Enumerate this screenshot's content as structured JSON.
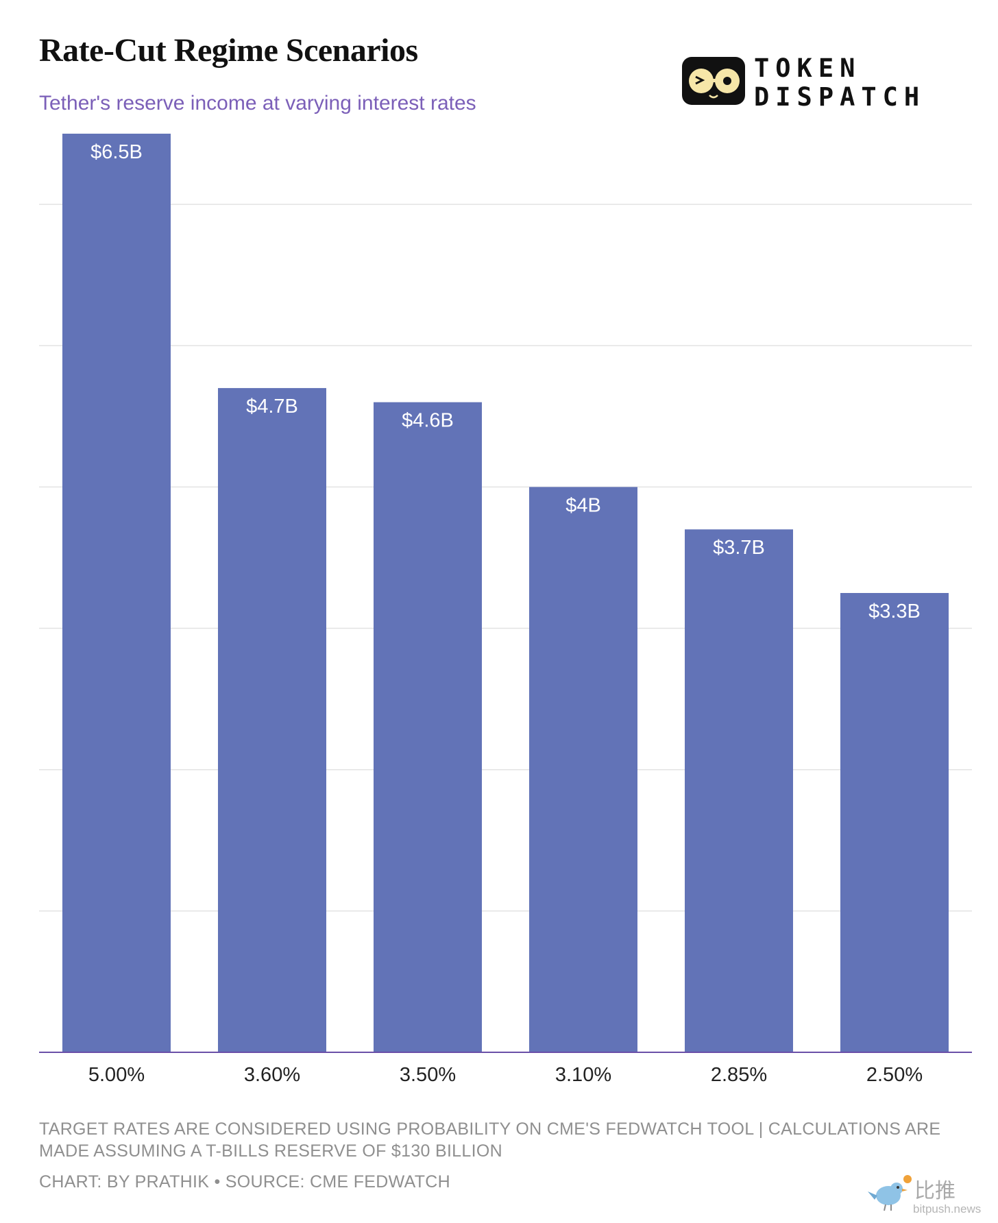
{
  "title": "Rate-Cut Regime Scenarios",
  "subtitle": "Tether's reserve income at varying interest rates",
  "brand": {
    "line1": "TOKEN",
    "line2": "DISPATCH"
  },
  "footnote": "TARGET RATES ARE CONSIDERED USING PROBABILITY ON CME'S FEDWATCH TOOL | CALCULATIONS ARE MADE ASSUMING A T-BILLS RESERVE OF $130 BILLION",
  "credit": "CHART: BY PRATHIK • SOURCE: CME FEDWATCH",
  "watermark": {
    "cn": "比推",
    "domain": "bitpush.news"
  },
  "colors": {
    "bar": "#6273b7",
    "subtitle": "#7b5fb8",
    "axis": "#6a4fa8",
    "grid": "#e3e3e3"
  },
  "chart_data": {
    "type": "bar",
    "title": "Rate-Cut Regime Scenarios",
    "subtitle": "Tether's reserve income at varying interest rates",
    "categories": [
      "5.00%",
      "3.60%",
      "3.50%",
      "3.10%",
      "2.85%",
      "2.50%"
    ],
    "values": [
      6.5,
      4.7,
      4.6,
      4.0,
      3.7,
      3.25
    ],
    "value_labels": [
      "$6.5B",
      "$4.7B",
      "$4.6B",
      "$4B",
      "$3.7B",
      "$3.3B"
    ],
    "xlabel": "",
    "ylabel": "",
    "ylim": [
      0,
      6.5
    ],
    "grid": true,
    "legend": "none"
  }
}
